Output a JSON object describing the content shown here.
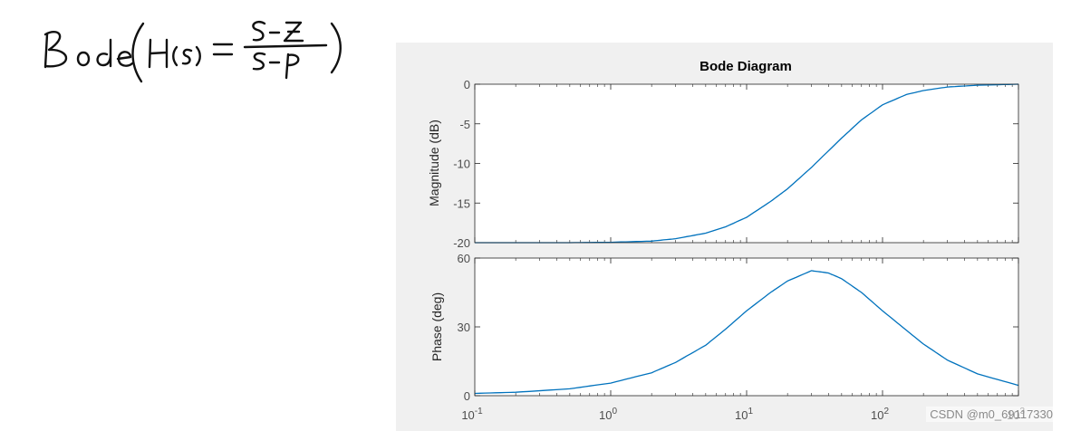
{
  "handwritten_note": "Bode(H(s) = (s-z)/(s-p))",
  "watermark": "CSDN @m0_69117330",
  "colors": {
    "curve": "#0072bd",
    "axes": "#262626",
    "panel_background": "#f0f0f0",
    "plot_background": "#ffffff"
  },
  "chart_data": {
    "type": "line",
    "title": "Bode Diagram",
    "x_scale": "log",
    "xlim": [
      0.1,
      1000
    ],
    "x_ticks": [
      0.1,
      1,
      10,
      100,
      1000
    ],
    "x_tick_labels": [
      {
        "base": "10",
        "exp": "-1"
      },
      {
        "base": "10",
        "exp": "0"
      },
      {
        "base": "10",
        "exp": "1"
      },
      {
        "base": "10",
        "exp": "2"
      },
      {
        "base": "10",
        "exp": "3"
      }
    ],
    "xlabel": "",
    "grid": false,
    "panels": [
      {
        "ylabel": "Magnitude (dB)",
        "ylim": [
          -20,
          0
        ],
        "yticks": [
          0,
          -5,
          -10,
          -15,
          -20
        ],
        "x": [
          0.1,
          0.5,
          1,
          2,
          3,
          5,
          7,
          10,
          15,
          20,
          30,
          50,
          70,
          100,
          150,
          200,
          300,
          500,
          1000
        ],
        "y": [
          -20,
          -20,
          -19.95,
          -19.8,
          -19.5,
          -18.8,
          -18.0,
          -16.8,
          -14.8,
          -13.2,
          -10.5,
          -6.8,
          -4.5,
          -2.6,
          -1.3,
          -0.8,
          -0.35,
          -0.13,
          0
        ]
      },
      {
        "ylabel": "Phase (deg)",
        "ylim": [
          0,
          60
        ],
        "yticks": [
          0,
          30,
          60
        ],
        "x": [
          0.1,
          0.2,
          0.5,
          1,
          2,
          3,
          5,
          7,
          10,
          15,
          20,
          30,
          40,
          50,
          70,
          100,
          150,
          200,
          300,
          500,
          1000
        ],
        "y": [
          1,
          1.5,
          3,
          5.5,
          10,
          14.5,
          22,
          29,
          37,
          45,
          50,
          54.5,
          53.5,
          51,
          45,
          37,
          28.5,
          22.5,
          15.5,
          9.5,
          4.5
        ]
      }
    ]
  }
}
